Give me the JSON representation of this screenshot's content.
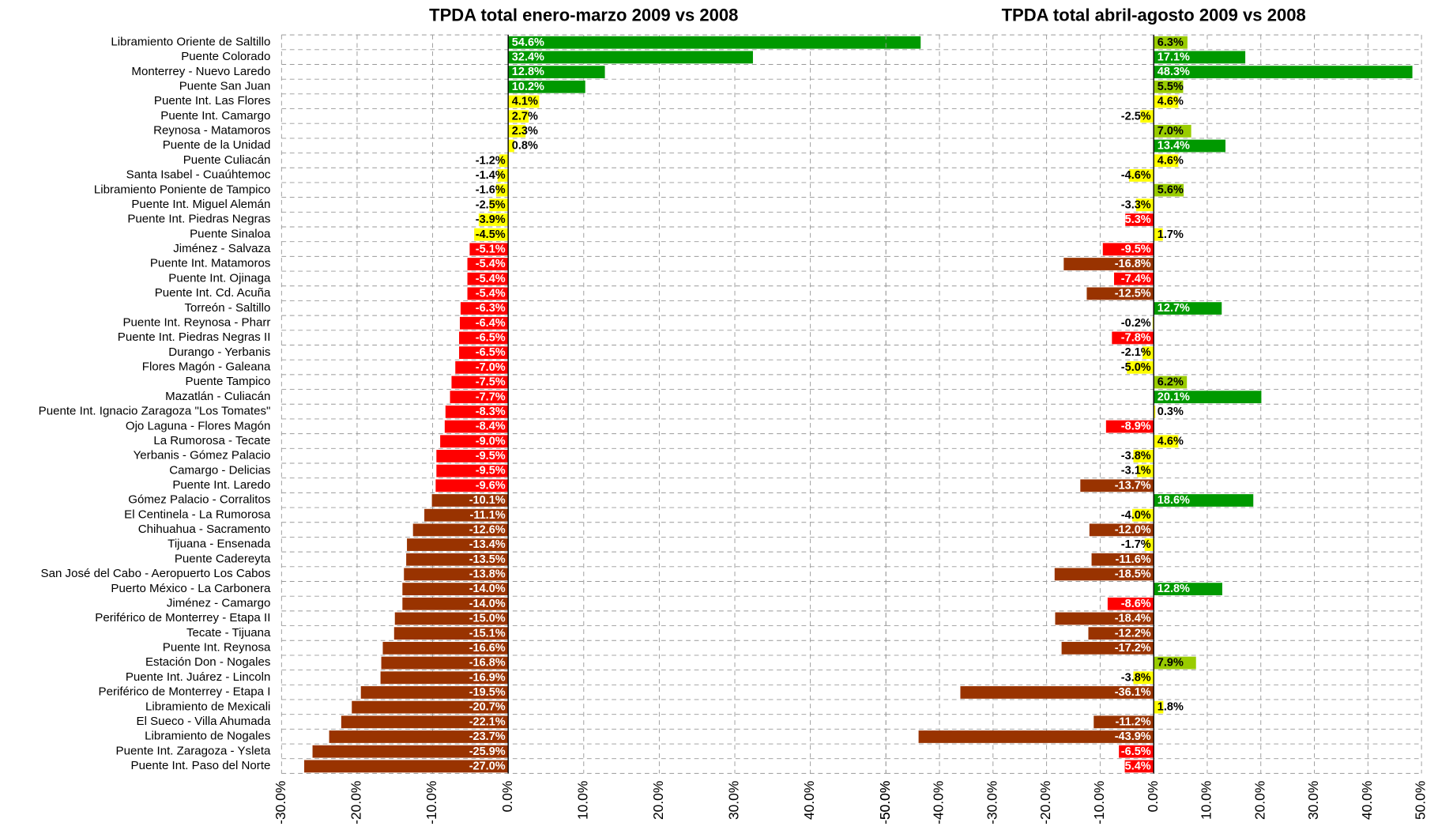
{
  "chart_data": [
    {
      "type": "hbar",
      "title": "TPDA total enero-marzo 2009 vs 2008",
      "categories": [
        "Libramiento Oriente de Saltillo",
        "Puente Colorado",
        "Monterrey - Nuevo Laredo",
        "Puente San Juan",
        "Puente Int. Las Flores",
        "Puente Int. Camargo",
        "Reynosa - Matamoros",
        "Puente de la Unidad",
        "Puente Culiacán",
        "Santa Isabel - Cuaúhtemoc",
        "Libramiento Poniente de Tampico",
        "Puente Int. Miguel Alemán",
        "Puente Int. Piedras Negras",
        "Puente Sinaloa",
        "Jiménez - Salvaza",
        "Puente Int. Matamoros",
        "Puente Int. Ojinaga",
        "Puente Int. Cd. Acuña",
        "Torreón - Saltillo",
        "Puente Int. Reynosa - Pharr",
        "Puente Int. Piedras Negras II",
        "Durango - Yerbanis",
        "Flores Magón - Galeana",
        "Puente Tampico",
        "Mazatlán - Culiacán",
        "Puente Int. Ignacio Zaragoza \"Los Tomates\"",
        "Ojo Laguna - Flores Magón",
        "La Rumorosa - Tecate",
        "Yerbanis - Gómez Palacio",
        "Camargo - Delicias",
        "Puente Int. Laredo",
        "Gómez Palacio - Corralitos",
        "El Centinela - La Rumorosa",
        "Chihuahua - Sacramento",
        "Tijuana - Ensenada",
        "Puente Cadereyta",
        "San José del Cabo - Aeropuerto Los Cabos",
        "Puerto México - La Carbonera",
        "Jiménez - Camargo",
        "Periférico de Monterrey - Etapa II",
        "Tecate - Tijuana",
        "Puente Int. Reynosa",
        "Estación Don - Nogales",
        "Puente Int. Juárez - Lincoln",
        "Periférico de Monterrey - Etapa I",
        "Libramiento de Mexicali",
        "El Sueco - Villa Ahumada",
        "Libramiento de Nogales",
        "Puente Int. Zaragoza - Ysleta",
        "Puente Int. Paso del Norte"
      ],
      "values": [
        54.6,
        32.4,
        12.8,
        10.2,
        4.1,
        2.7,
        2.3,
        0.8,
        -1.2,
        -1.4,
        -1.6,
        -2.5,
        -3.9,
        -4.5,
        -5.1,
        -5.4,
        -5.4,
        -5.4,
        -6.3,
        -6.4,
        -6.5,
        -6.5,
        -7.0,
        -7.5,
        -7.7,
        -8.3,
        -8.4,
        -9.0,
        -9.5,
        -9.5,
        -9.6,
        -10.1,
        -11.1,
        -12.6,
        -13.4,
        -13.5,
        -13.8,
        -14.0,
        -14.0,
        -15.0,
        -15.1,
        -16.6,
        -16.8,
        -16.9,
        -19.5,
        -20.7,
        -22.1,
        -23.7,
        -25.9,
        -27.0
      ],
      "value_labels": [
        "54.6%",
        "32.4%",
        "12.8%",
        "10.2%",
        "4.1%",
        "2.7%",
        "2.3%",
        "0.8%",
        "-1.2%",
        "-1.4%",
        "-1.6%",
        "-2.5%",
        "-3.9%",
        "-4.5%",
        "-5.1%",
        "-5.4%",
        "-5.4%",
        "-5.4%",
        "-6.3%",
        "-6.4%",
        "-6.5%",
        "-6.5%",
        "-7.0%",
        "-7.5%",
        "-7.7%",
        "-8.3%",
        "-8.4%",
        "-9.0%",
        "-9.5%",
        "-9.5%",
        "-9.6%",
        "-10.1%",
        "-11.1%",
        "-12.6%",
        "-13.4%",
        "-13.5%",
        "-13.8%",
        "-14.0%",
        "-14.0%",
        "-15.0%",
        "-15.1%",
        "-16.6%",
        "-16.8%",
        "-16.9%",
        "-19.5%",
        "-20.7%",
        "-22.1%",
        "-23.7%",
        "-25.9%",
        "-27.0%"
      ],
      "colors": [
        "#009900",
        "#009900",
        "#009900",
        "#009900",
        "#ffff00",
        "#ffff00",
        "#ffff00",
        "#ffff00",
        "#ffff00",
        "#ffff00",
        "#ffff00",
        "#ffff00",
        "#ffff00",
        "#ffff00",
        "#ff0000",
        "#ff0000",
        "#ff0000",
        "#ff0000",
        "#ff0000",
        "#ff0000",
        "#ff0000",
        "#ff0000",
        "#ff0000",
        "#ff0000",
        "#ff0000",
        "#ff0000",
        "#ff0000",
        "#ff0000",
        "#ff0000",
        "#ff0000",
        "#ff0000",
        "#993300",
        "#993300",
        "#993300",
        "#993300",
        "#993300",
        "#993300",
        "#993300",
        "#993300",
        "#993300",
        "#993300",
        "#993300",
        "#993300",
        "#993300",
        "#993300",
        "#993300",
        "#993300",
        "#993300",
        "#993300",
        "#993300"
      ],
      "xlim": [
        -30,
        50
      ],
      "xticks": [
        {
          "value": -30,
          "label": "-30.0%"
        },
        {
          "value": -20,
          "label": "-20.0%"
        },
        {
          "value": -10,
          "label": "-10.0%"
        },
        {
          "value": 0,
          "label": "0.0%"
        },
        {
          "value": 10,
          "label": "10.0%"
        },
        {
          "value": 20,
          "label": "20.0%"
        },
        {
          "value": 30,
          "label": "30.0%"
        },
        {
          "value": 40,
          "label": "40.0%"
        },
        {
          "value": 50,
          "label": "50.0%"
        }
      ],
      "grid": true
    },
    {
      "type": "hbar",
      "title": "TPDA total abril-agosto 2009 vs 2008",
      "values": [
        6.3,
        17.1,
        48.3,
        5.5,
        4.6,
        -2.5,
        7.0,
        13.4,
        4.6,
        -4.6,
        5.6,
        -3.3,
        -5.3,
        1.7,
        -9.5,
        -16.8,
        -7.4,
        -12.5,
        12.7,
        -0.2,
        -7.8,
        -2.1,
        -5.0,
        6.2,
        20.1,
        0.3,
        -8.9,
        4.6,
        -3.8,
        -3.1,
        -13.7,
        18.6,
        -4.0,
        -12.0,
        -1.7,
        -11.6,
        -18.5,
        12.8,
        -8.6,
        -18.4,
        -12.2,
        -17.2,
        7.9,
        -3.8,
        -36.1,
        1.8,
        -11.2,
        -43.9,
        -6.5,
        -5.4
      ],
      "value_labels": [
        "6.3%",
        "17.1%",
        "48.3%",
        "5.5%",
        "4.6%",
        "-2.5%",
        "7.0%",
        "13.4%",
        "4.6%",
        "-4.6%",
        "5.6%",
        "-3.3%",
        "-5.3%",
        "1.7%",
        "-9.5%",
        "-16.8%",
        "-7.4%",
        "-12.5%",
        "12.7%",
        "-0.2%",
        "-7.8%",
        "-2.1%",
        "-5.0%",
        "6.2%",
        "20.1%",
        "0.3%",
        "-8.9%",
        "4.6%",
        "-3.8%",
        "-3.1%",
        "-13.7%",
        "18.6%",
        "-4.0%",
        "-12.0%",
        "-1.7%",
        "-11.6%",
        "-18.5%",
        "12.8%",
        "-8.6%",
        "-18.4%",
        "-12.2%",
        "-17.2%",
        "7.9%",
        "-3.8%",
        "-36.1%",
        "1.8%",
        "-11.2%",
        "-43.9%",
        "-6.5%",
        "-5.4%"
      ],
      "colors": [
        "#99cc00",
        "#009900",
        "#009900",
        "#99cc00",
        "#ffff00",
        "#ffff00",
        "#99cc00",
        "#009900",
        "#ffff00",
        "#ffff00",
        "#99cc00",
        "#ffff00",
        "#ff0000",
        "#ffff00",
        "#ff0000",
        "#993300",
        "#ff0000",
        "#993300",
        "#009900",
        "#ffff00",
        "#ff0000",
        "#ffff00",
        "#ffff00",
        "#99cc00",
        "#009900",
        "#ffff00",
        "#ff0000",
        "#ffff00",
        "#ffff00",
        "#ffff00",
        "#993300",
        "#009900",
        "#ffff00",
        "#993300",
        "#ffff00",
        "#993300",
        "#993300",
        "#009900",
        "#ff0000",
        "#993300",
        "#993300",
        "#993300",
        "#99cc00",
        "#ffff00",
        "#993300",
        "#ffff00",
        "#993300",
        "#993300",
        "#ff0000",
        "#ff0000"
      ],
      "xlim": [
        -50,
        50
      ],
      "xticks": [
        {
          "value": -50,
          "label": "-50.0%"
        },
        {
          "value": -40,
          "label": "-40.0%"
        },
        {
          "value": -30,
          "label": "-30.0%"
        },
        {
          "value": -20,
          "label": "-20.0%"
        },
        {
          "value": -10,
          "label": "-10.0%"
        },
        {
          "value": 0,
          "label": "0.0%"
        },
        {
          "value": 10,
          "label": "10.0%"
        },
        {
          "value": 20,
          "label": "20.0%"
        },
        {
          "value": 30,
          "label": "30.0%"
        },
        {
          "value": 40,
          "label": "40.0%"
        },
        {
          "value": 50,
          "label": "50.0%"
        }
      ],
      "grid": true
    }
  ]
}
